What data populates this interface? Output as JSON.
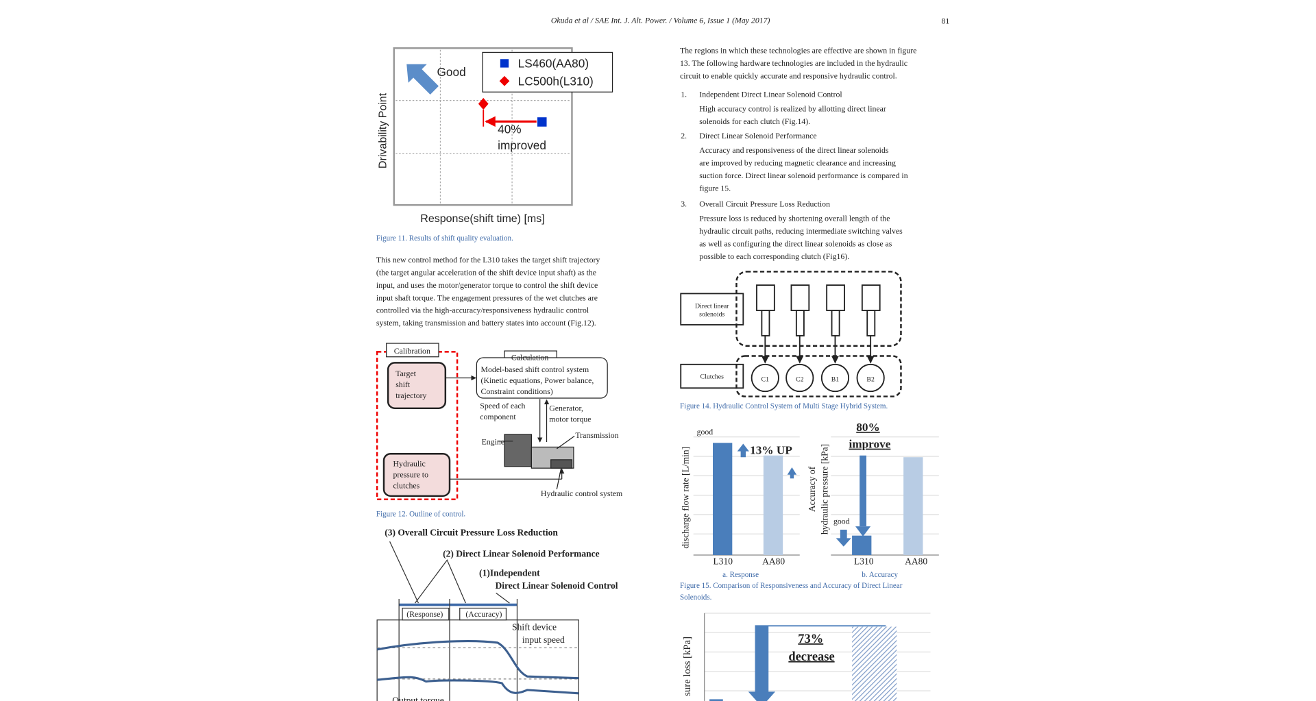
{
  "header": {
    "running_title": "Okuda et al / SAE Int. J. Alt. Power. / Volume 6, Issue 1 (May 2017)",
    "page_number": "81"
  },
  "figure11": {
    "good": "Good",
    "legend": [
      "LS460(AA80)",
      "LC500h(L310)"
    ],
    "annotation": [
      "40%",
      "improved"
    ],
    "y_label": "Drivability Point",
    "x_label": "Response(shift time) [ms]",
    "caption": "Figure 11. Results of shift quality evaluation."
  },
  "paragraph_left": [
    "This new control method for the L310 takes the target shift trajectory",
    "(the target angular acceleration of the shift device input shaft) as the",
    "input, and uses the motor/generator torque to control the shift device",
    "input shaft torque. The engagement pressures of the wet clutches are",
    "controlled via the high-accuracy/responsiveness hydraulic control",
    "system, taking transmission and battery states into account (Fig.12)."
  ],
  "figure12": {
    "calibration": "Calibration",
    "target": [
      "Target",
      "shift",
      "trajectory"
    ],
    "hydraulic_pressure": [
      "Hydraulic",
      "pressure to",
      "clutches"
    ],
    "calculation": "Calculation",
    "model": [
      "Model-based shift control system",
      "(Kinetic equations, Power balance,",
      "Constraint conditions)"
    ],
    "speed": [
      "Speed of each",
      "component"
    ],
    "generator": [
      "Generator,",
      "motor torque"
    ],
    "transmission": "Transmission",
    "engine": "Engine",
    "hydraulic_system": "Hydraulic  control system",
    "caption": "Figure 12. Outline of control."
  },
  "figure13": {
    "label3": "(3) Overall Circuit  Pressure Loss Reduction",
    "label2": "(2) Direct Linear Solenoid Performance",
    "label1": [
      "(1)Independent",
      "Direct Linear Solenoid Control"
    ],
    "response": "(Response)",
    "accuracy": "(Accuracy)",
    "speed": [
      "Shift device",
      "input speed"
    ],
    "torque": "Output torque"
  },
  "paragraph_right": [
    "The regions in which these technologies are effective are shown in figure",
    "13. The following hardware technologies are included in the hydraulic",
    "circuit to enable quickly accurate and responsive hydraulic control."
  ],
  "list": [
    {
      "number": "1.",
      "title": "Independent Direct Linear Solenoid Control",
      "lines": [
        "High accuracy control is realized by allotting direct linear",
        "solenoids for each clutch (Fig.14)."
      ]
    },
    {
      "number": "2.",
      "title": "Direct Linear Solenoid Performance",
      "lines": [
        "Accuracy and responsiveness of the direct linear solenoids",
        "are improved by reducing magnetic clearance and increasing",
        "suction force. Direct linear solenoid performance is compared in",
        "figure 15."
      ]
    },
    {
      "number": "3.",
      "title": "Overall Circuit Pressure Loss Reduction",
      "lines": [
        "Pressure loss is reduced by shortening overall length of the",
        "hydraulic circuit paths, reducing intermediate switching valves",
        "as well as configuring the direct linear solenoids as close as",
        "possible to each corresponding clutch (Fig16)."
      ]
    }
  ],
  "figure14": {
    "solenoids": [
      "Direct linear",
      "solenoids"
    ],
    "clutches": "Clutches",
    "clutch_labels": [
      "C1",
      "C2",
      "B1",
      "B2"
    ],
    "caption": "Figure 14. Hydraulic Control System of Multi Stage Hybrid System."
  },
  "figure15": {
    "good_a": "good",
    "up": "13% UP",
    "y_label_a": "discharge flow rate  [L/min]",
    "categories_a": [
      "L310",
      "AA80"
    ],
    "sub_a": "a. Response",
    "headline_b": [
      "80%",
      "improve"
    ],
    "good_b": "good",
    "y_label_b": [
      "Accuracy of",
      "hydraulic pressure [kPa]"
    ],
    "categories_b": [
      "L310",
      "AA80"
    ],
    "sub_b": "b. Accuracy",
    "caption": [
      "Figure 15. Comparison of Responsiveness and Accuracy of Direct Linear",
      "Solenoids."
    ]
  },
  "figure16": {
    "headline": [
      "73%",
      "decrease"
    ],
    "y_label": "sure loss [kPa]"
  }
}
